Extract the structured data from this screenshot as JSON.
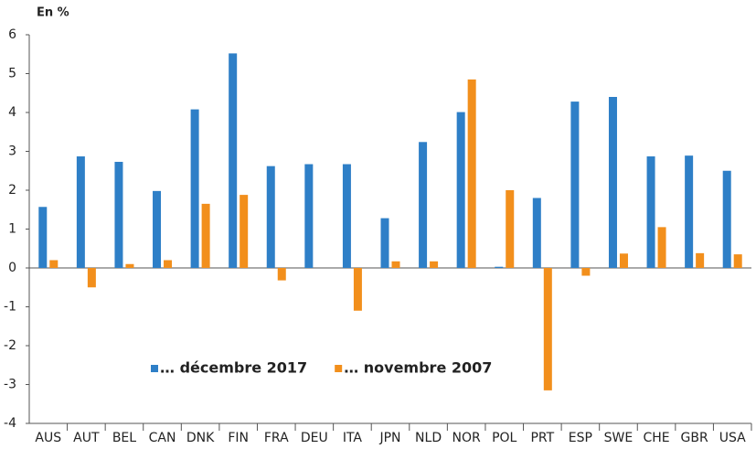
{
  "chart_data": {
    "type": "bar",
    "y_label": "En %",
    "categories": [
      "AUS",
      "AUT",
      "BEL",
      "CAN",
      "DNK",
      "FIN",
      "FRA",
      "DEU",
      "ITA",
      "JPN",
      "NLD",
      "NOR",
      "POL",
      "PRT",
      "ESP",
      "SWE",
      "CHE",
      "GBR",
      "USA"
    ],
    "series": [
      {
        "name": "… décembre 2017",
        "color": "#2e7fc7",
        "values": [
          1.57,
          2.87,
          2.73,
          1.98,
          4.08,
          5.52,
          2.62,
          2.67,
          2.67,
          1.28,
          3.24,
          4.01,
          0.03,
          1.8,
          4.28,
          4.4,
          2.87,
          2.89,
          2.5
        ]
      },
      {
        "name": "… novembre 2007",
        "color": "#f28f1c",
        "values": [
          0.2,
          -0.5,
          0.1,
          0.2,
          1.65,
          1.88,
          -0.32,
          0,
          -1.1,
          0.17,
          0.17,
          4.85,
          2.0,
          -3.15,
          -0.2,
          0.37,
          1.05,
          0.38,
          0.35
        ]
      }
    ],
    "ylim": [
      -4,
      6
    ],
    "yticks": [
      -4,
      -3,
      -2,
      -1,
      0,
      1,
      2,
      3,
      4,
      5,
      6
    ]
  }
}
